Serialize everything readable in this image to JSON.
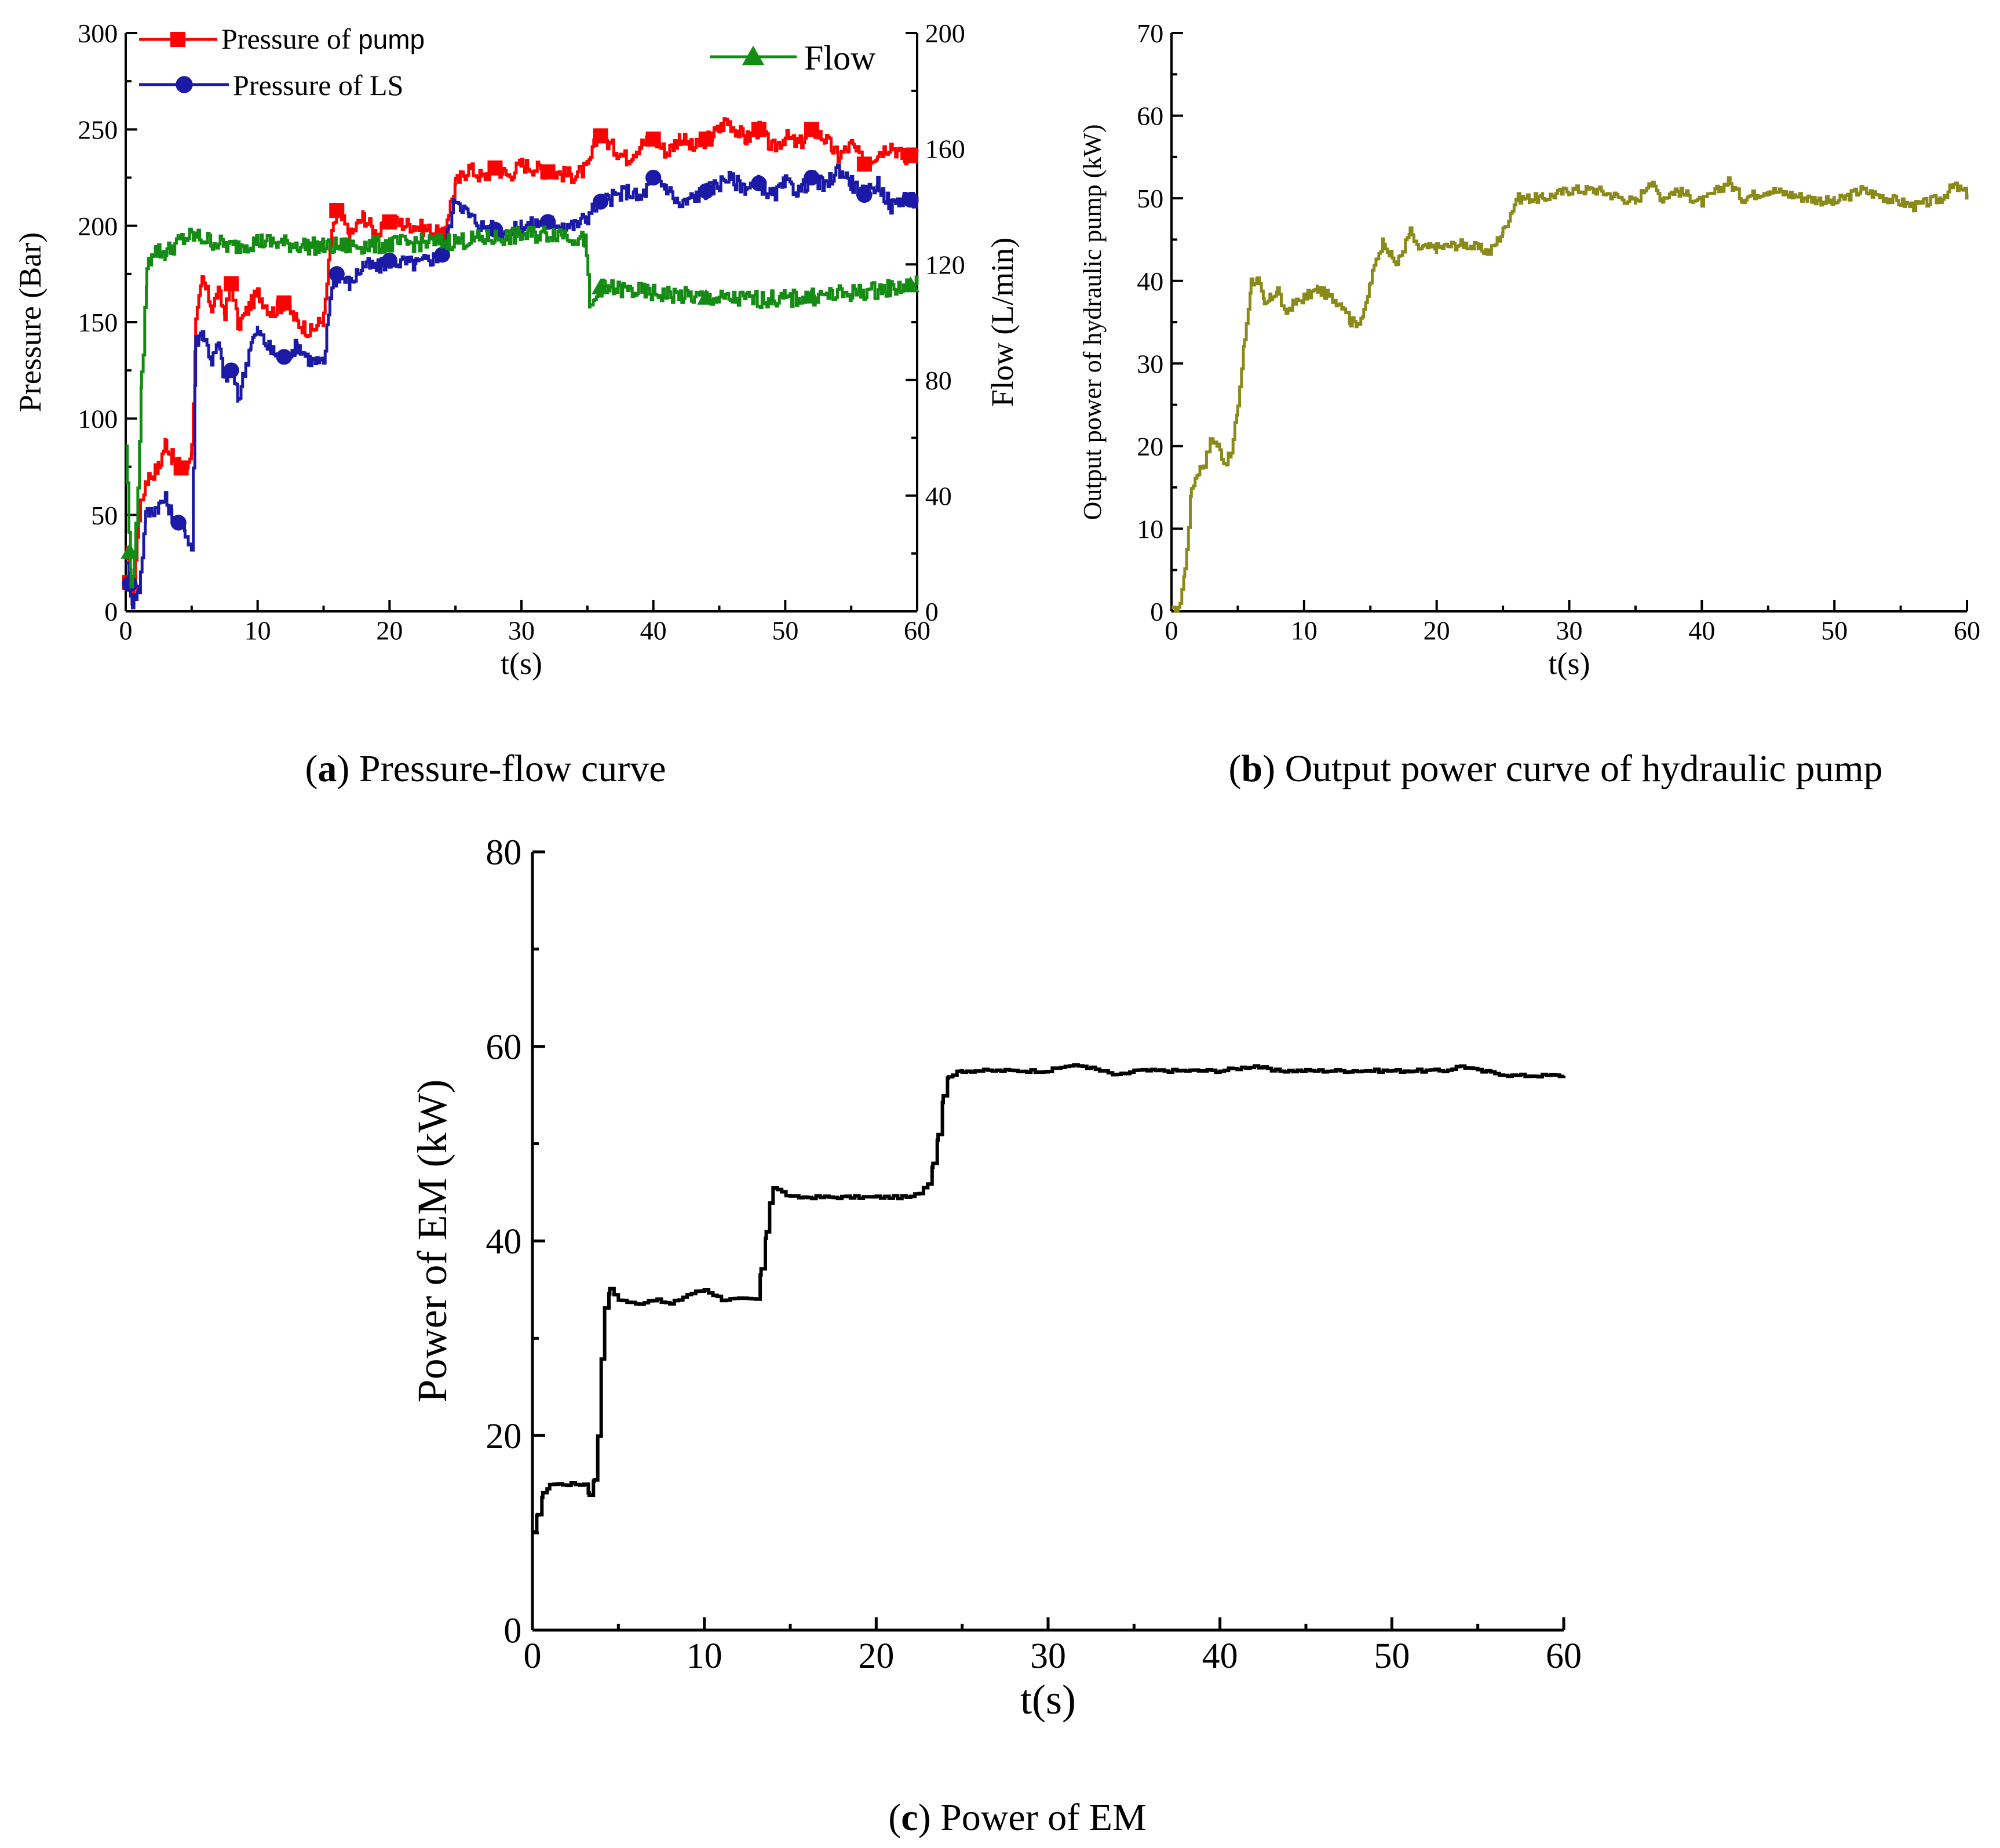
{
  "chart_data": [
    {
      "id": "a",
      "type": "line",
      "caption_letter": "a",
      "caption_text": " Pressure-flow curve",
      "xlabel": "t(s)",
      "ylabel": "Pressure (Bar)",
      "y2label": "Flow (L/min)",
      "xlim": [
        0,
        60
      ],
      "ylim": [
        0,
        300
      ],
      "y2lim": [
        0,
        200
      ],
      "xticks": [
        0,
        10,
        20,
        30,
        40,
        50,
        60
      ],
      "yticks": [
        0,
        50,
        100,
        150,
        200,
        250,
        300
      ],
      "y2ticks": [
        0,
        40,
        80,
        120,
        160,
        200
      ],
      "legend_placement": "top",
      "series": [
        {
          "name": "Pressure of ",
          "name_suffix": "pump",
          "axis": "left",
          "color": "#ff0000",
          "marker": "square",
          "x": [
            0,
            0.5,
            1.0,
            1.5,
            2.5,
            3.0,
            3.5,
            4.5,
            5.0,
            5.3,
            5.8,
            6.5,
            7.0,
            7.5,
            8.0,
            8.5,
            9.5,
            10.0,
            11.0,
            12.0,
            13.0,
            14.0,
            15.0,
            15.5,
            16.0,
            17.0,
            18.0,
            19.0,
            20.0,
            22.0,
            24.0,
            25.0,
            26.0,
            27.0,
            28.0,
            29.0,
            30.0,
            32.0,
            34.0,
            35.0,
            35.8,
            37.0,
            38.0,
            39.0,
            40.0,
            41.0,
            42.0,
            43.0,
            44.0,
            45.0,
            45.5,
            47.0,
            48.0,
            49.0,
            50.0,
            51.0,
            52.0,
            53.0,
            54.0,
            55.0,
            56.0,
            57.0,
            58.0,
            59.0,
            60.0
          ],
          "values": [
            30,
            5,
            50,
            68,
            75,
            88,
            80,
            72,
            85,
            150,
            172,
            158,
            165,
            155,
            170,
            148,
            160,
            165,
            155,
            160,
            150,
            145,
            152,
            190,
            208,
            195,
            205,
            195,
            202,
            200,
            195,
            222,
            230,
            225,
            230,
            226,
            232,
            228,
            226,
            230,
            248,
            240,
            235,
            242,
            245,
            238,
            246,
            240,
            245,
            250,
            255,
            245,
            250,
            240,
            246,
            242,
            250,
            245,
            236,
            242,
            232,
            238,
            242,
            235,
            238
          ],
          "marker_x": [
            0.3,
            4.2,
            8.0,
            12.0,
            16.0,
            20.0,
            24.0,
            28.0,
            32.0,
            36.0,
            40.0,
            44.0,
            48.0,
            52.0,
            56.0,
            59.5
          ]
        },
        {
          "name": "Pressure of LS",
          "axis": "left",
          "color": "#1a1aa6",
          "marker": "circle",
          "x": [
            0,
            0.5,
            1.0,
            1.5,
            2.5,
            3.0,
            3.5,
            4.5,
            5.0,
            5.3,
            5.8,
            6.5,
            7.0,
            7.5,
            8.0,
            8.5,
            9.5,
            10.0,
            11.0,
            12.0,
            13.0,
            14.0,
            15.0,
            15.5,
            16.0,
            17.0,
            18.0,
            19.0,
            20.0,
            22.0,
            24.0,
            25.0,
            26.0,
            27.0,
            28.0,
            29.0,
            30.0,
            32.0,
            34.0,
            35.0,
            35.8,
            37.0,
            38.0,
            39.0,
            40.0,
            41.0,
            42.0,
            43.0,
            44.0,
            45.0,
            45.5,
            47.0,
            48.0,
            49.0,
            50.0,
            51.0,
            52.0,
            53.0,
            54.0,
            55.0,
            56.0,
            57.0,
            58.0,
            59.0,
            60.0
          ],
          "values": [
            28,
            5,
            12,
            50,
            55,
            58,
            50,
            42,
            32,
            140,
            145,
            130,
            138,
            120,
            125,
            110,
            140,
            145,
            135,
            132,
            138,
            130,
            128,
            165,
            175,
            170,
            180,
            178,
            182,
            180,
            185,
            215,
            205,
            200,
            198,
            196,
            200,
            202,
            200,
            205,
            212,
            215,
            218,
            214,
            225,
            220,
            210,
            215,
            218,
            222,
            225,
            220,
            222,
            215,
            222,
            218,
            225,
            220,
            230,
            222,
            216,
            222,
            210,
            215,
            212
          ],
          "marker_x": [
            0.3,
            4.0,
            8.0,
            12.0,
            16.0,
            20.0,
            24.0,
            28.0,
            32.0,
            36.0,
            40.0,
            44.0,
            48.0,
            52.0,
            56.0,
            59.5
          ]
        },
        {
          "name": "Flow",
          "axis": "right",
          "color": "#148c14",
          "marker": "triangle",
          "x": [
            0,
            0.4,
            0.8,
            1.2,
            1.6,
            2.0,
            3.0,
            4.0,
            5.0,
            8.0,
            10.0,
            15.0,
            20.0,
            25.0,
            30.0,
            33.0,
            34.8,
            35.2,
            36.0,
            40.0,
            45.0,
            50.0,
            55.0,
            60.0
          ],
          "values": [
            58,
            8,
            30,
            80,
            118,
            125,
            124,
            128,
            130,
            126,
            128,
            126,
            127,
            128,
            130,
            131,
            128,
            104,
            112,
            110,
            108,
            108,
            110,
            113
          ],
          "marker_x": [
            0.3,
            36.0,
            44.0,
            52.0,
            59.5
          ]
        }
      ]
    },
    {
      "id": "b",
      "type": "line",
      "caption_letter": "b",
      "caption_text": " Output power curve of hydraulic pump",
      "xlabel": "t(s)",
      "ylabel": "Output power of hydraulic pump (kW)",
      "xlim": [
        0,
        60
      ],
      "ylim": [
        0,
        70
      ],
      "xticks": [
        0,
        10,
        20,
        30,
        40,
        50,
        60
      ],
      "yticks": [
        0,
        10,
        20,
        30,
        40,
        50,
        60,
        70
      ],
      "series": [
        {
          "name": "Output power of hydraulic pump",
          "color": "#8a8a1a",
          "x": [
            0,
            0.5,
            1.0,
            1.5,
            2.0,
            2.5,
            3.0,
            3.5,
            4.0,
            4.5,
            5.0,
            5.5,
            6.0,
            6.5,
            7.0,
            7.5,
            8.0,
            8.5,
            9.0,
            10.0,
            11.0,
            12.0,
            13.0,
            13.5,
            14.0,
            14.5,
            15.0,
            15.5,
            16.0,
            16.5,
            17.0,
            17.5,
            18.0,
            18.5,
            19.0,
            20.0,
            22.0,
            24.0,
            25.0,
            26.0,
            27.0,
            28.0,
            30.0,
            32.0,
            34.0,
            35.0,
            36.0,
            37.0,
            38.0,
            40.0,
            42.0,
            43.0,
            45.0,
            48.0,
            50.0,
            52.0,
            54.0,
            56.0,
            58.0,
            59.0,
            60.0
          ],
          "values": [
            0,
            0,
            5,
            15,
            17,
            18,
            21,
            20,
            18,
            19,
            25,
            33,
            40,
            40,
            37,
            38,
            39,
            36,
            37,
            38,
            39,
            38,
            37,
            35,
            35,
            36,
            40,
            43,
            45,
            43,
            42,
            44,
            46,
            44,
            44,
            44,
            44.5,
            43.5,
            46,
            50,
            50,
            50,
            51,
            51,
            50,
            49.5,
            52,
            50,
            51,
            49.5,
            52,
            50,
            51,
            50,
            49.5,
            51,
            50,
            49,
            50,
            51.5,
            50.5
          ]
        }
      ]
    },
    {
      "id": "c",
      "type": "line",
      "caption_letter": "c",
      "caption_text": " Power of EM",
      "xlabel": "t(s)",
      "ylabel": "Power of EM (kW)",
      "xlim": [
        0,
        60
      ],
      "ylim": [
        0,
        80
      ],
      "xticks": [
        0,
        10,
        20,
        30,
        40,
        50,
        60
      ],
      "yticks": [
        0,
        20,
        40,
        60,
        80
      ],
      "series": [
        {
          "name": "Power of EM",
          "color": "#000000",
          "x": [
            0,
            0.3,
            0.6,
            1.0,
            2.0,
            3.0,
            3.3,
            3.6,
            3.8,
            4.0,
            4.2,
            4.5,
            5.0,
            6.0,
            7.0,
            8.0,
            9.0,
            10.0,
            11.0,
            12.0,
            13.0,
            13.3,
            13.6,
            13.8,
            14.0,
            14.5,
            15.0,
            17.0,
            20.0,
            22.0,
            22.5,
            23.0,
            23.3,
            23.6,
            23.9,
            24.2,
            25.0,
            30.0,
            31.0,
            32.0,
            33.0,
            34.0,
            35.0,
            40.0,
            42.0,
            43.0,
            45.0,
            50.0,
            53.0,
            54.0,
            55.0,
            57.0,
            60.0
          ],
          "values": [
            10,
            12,
            14,
            15,
            15,
            15,
            14,
            15.5,
            20,
            28,
            33,
            35,
            34,
            33.5,
            34,
            33.5,
            34.5,
            35,
            34,
            34,
            34,
            37,
            41,
            44,
            45.5,
            45,
            44.5,
            44.5,
            44.5,
            44.5,
            45,
            46,
            48,
            51,
            55,
            57,
            57.5,
            57.5,
            58,
            58,
            57.5,
            57,
            57.5,
            57.5,
            58,
            57.5,
            57.5,
            57.5,
            57.5,
            58,
            57.5,
            57,
            57
          ]
        }
      ]
    }
  ]
}
